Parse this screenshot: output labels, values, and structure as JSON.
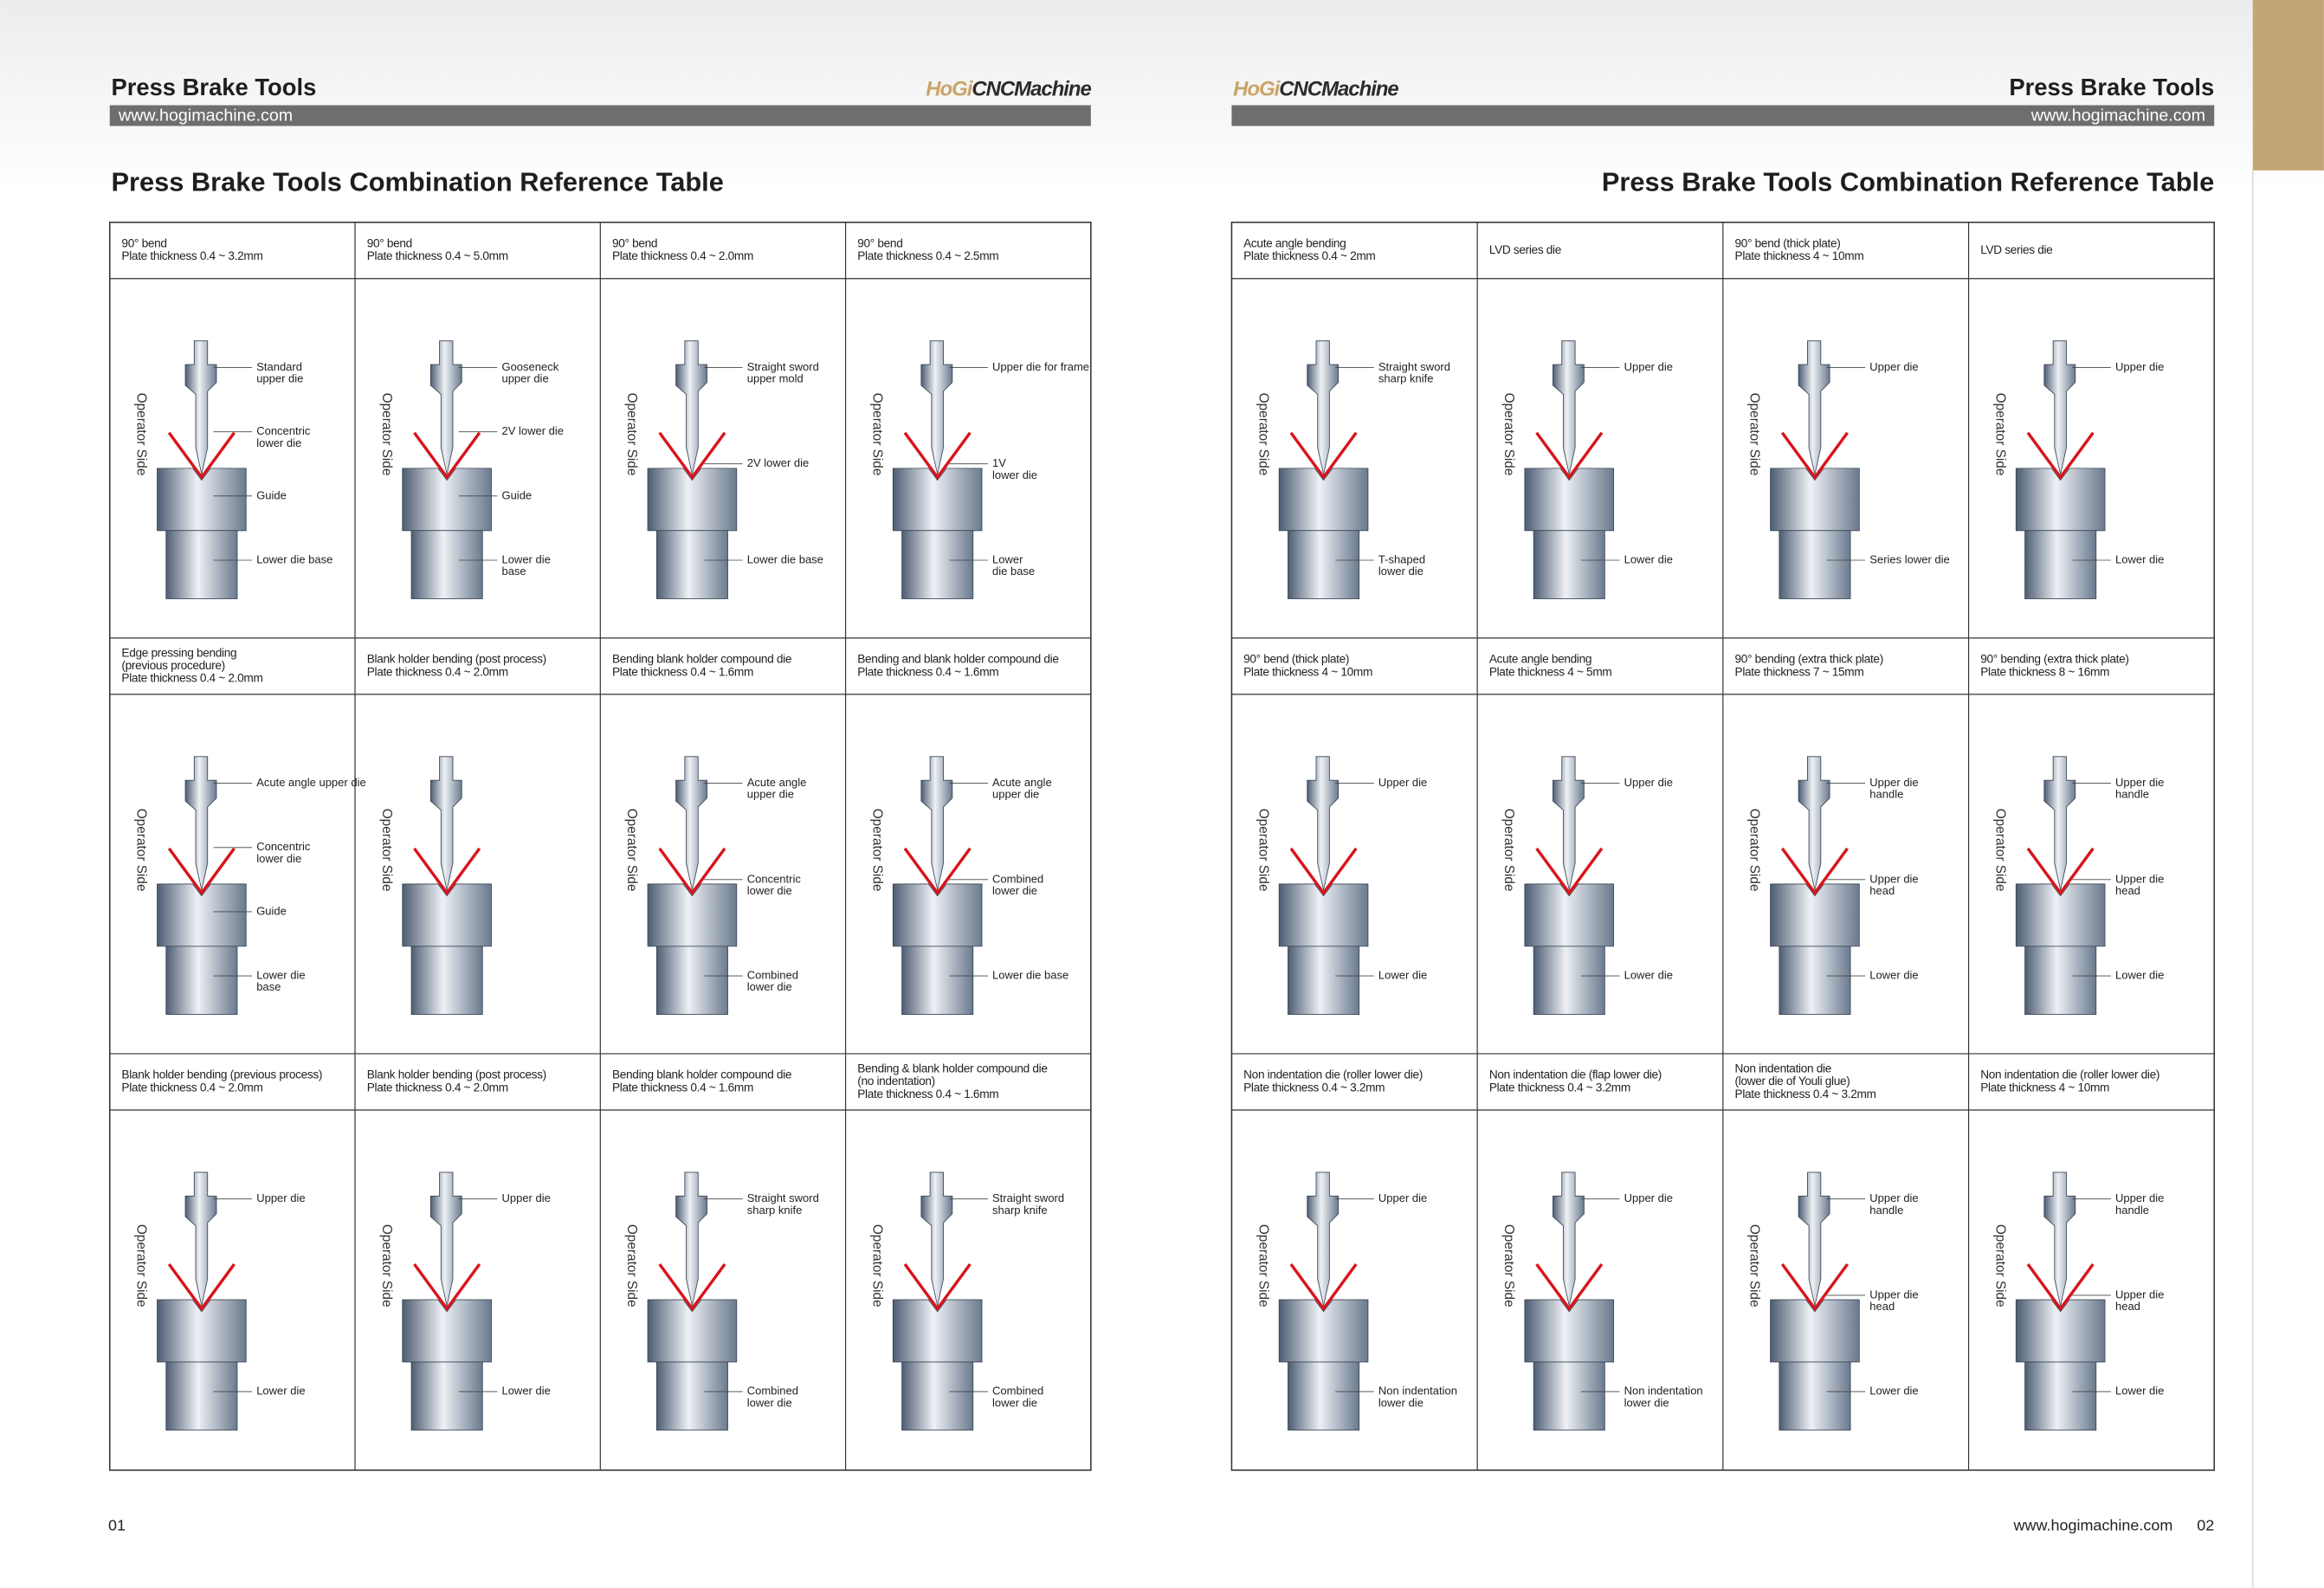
{
  "operator_side": "Operator Side",
  "pages": [
    {
      "header": {
        "title": "Press Brake Tools",
        "url": "www.hogimachine.com",
        "brand_a": "HoGi",
        "brand_b": "CNCMachine"
      },
      "section_title": "Press Brake Tools Combination Reference Table",
      "page_number": "01",
      "cells": [
        {
          "caption": [
            "90° bend",
            "Plate thickness 0.4 ~ 3.2mm"
          ],
          "labels": [
            [
              "Standard",
              "upper die"
            ],
            [
              "Concentric",
              "lower die"
            ],
            [
              "Guide"
            ],
            [
              "Lower die base"
            ]
          ]
        },
        {
          "caption": [
            "90° bend",
            "Plate thickness 0.4 ~ 5.0mm"
          ],
          "labels": [
            [
              "Gooseneck",
              "upper die"
            ],
            [
              "2V lower die"
            ],
            [
              "Guide"
            ],
            [
              "Lower die",
              "base"
            ]
          ]
        },
        {
          "caption": [
            "90° bend",
            "Plate thickness 0.4 ~ 2.0mm"
          ],
          "labels": [
            [
              "Straight sword",
              "upper mold"
            ],
            [
              "2V lower die"
            ],
            [
              "Lower die base"
            ]
          ]
        },
        {
          "caption": [
            "90° bend",
            "Plate thickness 0.4 ~ 2.5mm"
          ],
          "labels": [
            [
              "Upper die for frame"
            ],
            [
              "1V",
              "lower die"
            ],
            [
              "Lower",
              "die base"
            ]
          ]
        },
        {
          "caption": [
            "Edge pressing bending",
            "(previous procedure)",
            "Plate thickness 0.4 ~ 2.0mm"
          ],
          "labels": [
            [
              "Acute angle upper die"
            ],
            [
              "Concentric",
              "lower die"
            ],
            [
              "Guide"
            ],
            [
              "Lower die",
              "base"
            ]
          ]
        },
        {
          "caption": [
            "Blank holder bending (post process)",
            "Plate thickness 0.4 ~ 2.0mm"
          ],
          "labels": []
        },
        {
          "caption": [
            "Bending blank holder compound die",
            "Plate thickness 0.4 ~ 1.6mm"
          ],
          "labels": [
            [
              "Acute angle",
              "upper die"
            ],
            [
              "Concentric",
              "lower die"
            ],
            [
              "Combined",
              "lower die"
            ]
          ]
        },
        {
          "caption": [
            "Bending and blank holder compound die",
            "Plate thickness 0.4 ~ 1.6mm"
          ],
          "labels": [
            [
              "Acute angle",
              "upper die"
            ],
            [
              "Combined",
              "lower die"
            ],
            [
              "Lower die base"
            ]
          ]
        },
        {
          "caption": [
            "Blank holder bending (previous process)",
            "Plate thickness 0.4 ~ 2.0mm"
          ],
          "labels": [
            [
              "Upper die"
            ],
            [
              "Lower die"
            ]
          ]
        },
        {
          "caption": [
            "Blank holder bending (post process)",
            "Plate thickness 0.4 ~ 2.0mm"
          ],
          "labels": [
            [
              "Upper die"
            ],
            [
              "Lower die"
            ]
          ]
        },
        {
          "caption": [
            "Bending blank holder compound die",
            "Plate thickness 0.4 ~ 1.6mm"
          ],
          "labels": [
            [
              "Straight sword",
              "sharp knife"
            ],
            [
              "Combined",
              "lower die"
            ]
          ]
        },
        {
          "caption": [
            "Bending & blank holder compound die",
            "(no indentation)",
            "Plate thickness 0.4 ~ 1.6mm"
          ],
          "labels": [
            [
              "Straight sword",
              "sharp knife"
            ],
            [
              "Combined",
              "lower die"
            ]
          ]
        }
      ]
    },
    {
      "header": {
        "title": "Press Brake Tools",
        "url": "www.hogimachine.com",
        "brand_a": "HoGi",
        "brand_b": "CNCMachine"
      },
      "section_title": "Press Brake Tools Combination Reference Table",
      "page_number": "02",
      "footer_url": "www.hogimachine.com",
      "cells": [
        {
          "caption": [
            "Acute angle bending",
            "Plate thickness 0.4 ~ 2mm"
          ],
          "labels": [
            [
              "Straight sword",
              "sharp knife"
            ],
            [
              "T-shaped",
              "lower die"
            ]
          ]
        },
        {
          "caption": [
            "LVD series die"
          ],
          "labels": [
            [
              "Upper die"
            ],
            [
              "Lower die"
            ]
          ]
        },
        {
          "caption": [
            "90° bend (thick plate)",
            "Plate thickness 4 ~ 10mm"
          ],
          "labels": [
            [
              "Upper die"
            ],
            [
              "Series lower die"
            ]
          ]
        },
        {
          "caption": [
            "LVD series die"
          ],
          "labels": [
            [
              "Upper die"
            ],
            [
              "Lower die"
            ]
          ]
        },
        {
          "caption": [
            "90° bend (thick plate)",
            "Plate thickness 4 ~ 10mm"
          ],
          "labels": [
            [
              "Upper die"
            ],
            [
              "Lower die"
            ]
          ]
        },
        {
          "caption": [
            "Acute angle bending",
            "Plate thickness 4 ~ 5mm"
          ],
          "labels": [
            [
              "Upper die"
            ],
            [
              "Lower die"
            ]
          ]
        },
        {
          "caption": [
            "90° bending (extra thick plate)",
            "Plate thickness 7 ~ 15mm"
          ],
          "labels": [
            [
              "Upper die",
              "handle"
            ],
            [
              "Upper die",
              "head"
            ],
            [
              "Lower die"
            ]
          ]
        },
        {
          "caption": [
            "90° bending (extra thick plate)",
            "Plate thickness 8 ~ 16mm"
          ],
          "labels": [
            [
              "Upper die",
              "handle"
            ],
            [
              "Upper die",
              "head"
            ],
            [
              "Lower die"
            ]
          ]
        },
        {
          "caption": [
            "Non indentation die (roller lower die)",
            "Plate thickness 0.4 ~ 3.2mm"
          ],
          "labels": [
            [
              "Upper die"
            ],
            [
              "Non indentation",
              "lower die"
            ]
          ]
        },
        {
          "caption": [
            "Non indentation die (flap lower die)",
            "Plate thickness 0.4 ~ 3.2mm"
          ],
          "labels": [
            [
              "Upper die"
            ],
            [
              "Non indentation",
              "lower die"
            ]
          ]
        },
        {
          "caption": [
            "Non indentation die",
            "(lower die of Youli glue)",
            "Plate thickness 0.4 ~ 3.2mm"
          ],
          "labels": [
            [
              "Upper die",
              "handle"
            ],
            [
              "Upper die",
              "head"
            ],
            [
              "Lower die"
            ]
          ]
        },
        {
          "caption": [
            "Non indentation die (roller lower die)",
            "Plate thickness 4 ~ 10mm"
          ],
          "labels": [
            [
              "Upper die",
              "handle"
            ],
            [
              "Upper die",
              "head"
            ],
            [
              "Lower die"
            ]
          ]
        }
      ]
    }
  ]
}
